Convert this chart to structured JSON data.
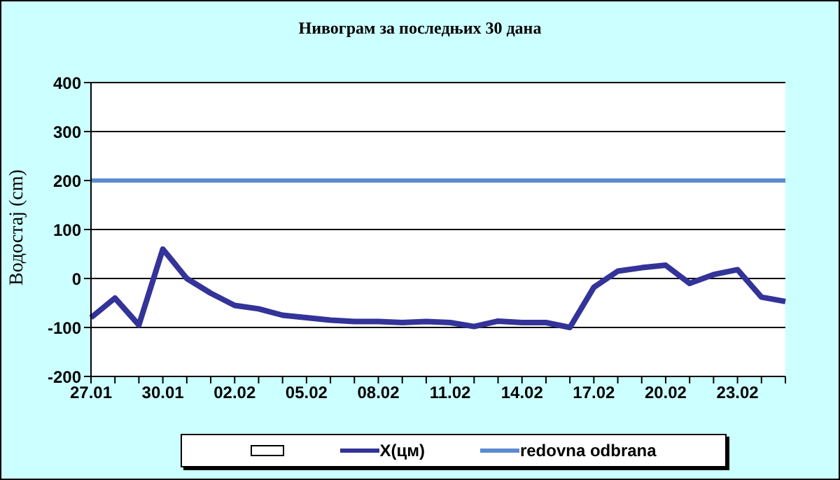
{
  "chart_data": {
    "type": "line",
    "title": "Нивограм за последњих 30 дана",
    "ylabel": "Водостај (cm)",
    "categories": [
      "27.01",
      null,
      null,
      "30.01",
      null,
      null,
      "02.02",
      null,
      null,
      "05.02",
      null,
      null,
      "08.02",
      null,
      null,
      "11.02",
      null,
      null,
      "14.02",
      null,
      null,
      "17.02",
      null,
      null,
      "20.02",
      null,
      null,
      "23.02",
      null,
      null
    ],
    "series": [
      {
        "name": "X(цм)",
        "color": "#333399",
        "values": [
          -80,
          -40,
          -95,
          60,
          0,
          -30,
          -55,
          -62,
          -75,
          -80,
          -85,
          -88,
          -88,
          -90,
          -88,
          -90,
          -98,
          -87,
          -90,
          -90,
          -100,
          -18,
          15,
          22,
          27,
          -10,
          8,
          18,
          -38,
          -47
        ]
      }
    ],
    "ref_lines": [
      {
        "axis": "y",
        "value": 200,
        "label": "redovna odbrana",
        "color": "#5b8bd0"
      }
    ],
    "ylim": [
      -200,
      400
    ],
    "yticks": [
      -200,
      -100,
      0,
      100,
      200,
      300,
      400
    ],
    "grid": "y",
    "legend": "bottom",
    "marker": "none",
    "line_style": "solid"
  }
}
